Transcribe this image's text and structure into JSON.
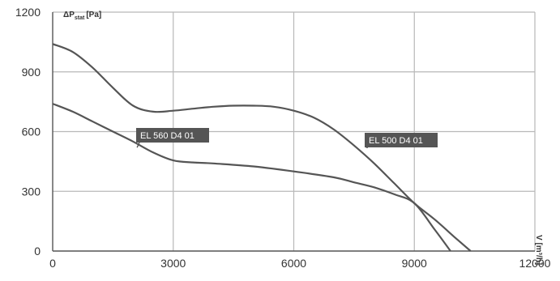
{
  "chart_data": {
    "type": "line",
    "ylabel": "ΔPₛₜₐₜ [Pa]",
    "ylabel_main": "ΔP",
    "ylabel_sub": "stat",
    "ylabel_unit": "[Pa]",
    "xlabel": "V [m³/h]",
    "xlim": [
      0,
      12000
    ],
    "ylim": [
      0,
      1200
    ],
    "xticks": [
      "0",
      "3000",
      "6000",
      "9000",
      "12000"
    ],
    "yticks": [
      "0",
      "300",
      "600",
      "900",
      "1200"
    ],
    "grid": true,
    "series": [
      {
        "name": "EL 500 D4 01",
        "x": [
          0,
          500,
          1000,
          1500,
          2000,
          2500,
          3000,
          3500,
          4000,
          4500,
          5000,
          5500,
          6000,
          6500,
          7000,
          7500,
          8000,
          8500,
          9000,
          9500,
          10000,
          10400
        ],
        "y": [
          1040,
          1000,
          920,
          820,
          730,
          700,
          705,
          715,
          725,
          730,
          730,
          725,
          705,
          670,
          610,
          530,
          440,
          340,
          240,
          160,
          70,
          0
        ]
      },
      {
        "name": "EL 560 D4 01",
        "x": [
          0,
          500,
          1000,
          1500,
          2000,
          2500,
          3000,
          3500,
          4000,
          5000,
          6000,
          7000,
          7500,
          8000,
          8500,
          9000,
          9500,
          9900
        ],
        "y": [
          740,
          700,
          650,
          600,
          550,
          495,
          455,
          445,
          440,
          425,
          400,
          370,
          345,
          320,
          285,
          240,
          110,
          0
        ]
      }
    ],
    "annotations": [
      {
        "text": "EL 560 D4 01",
        "series": "EL 560 D4 01",
        "x": 2100,
        "y": 520
      },
      {
        "text": "EL 500 D4 01",
        "series": "EL 500 D4 01",
        "x": 7800,
        "y": 520
      }
    ]
  }
}
